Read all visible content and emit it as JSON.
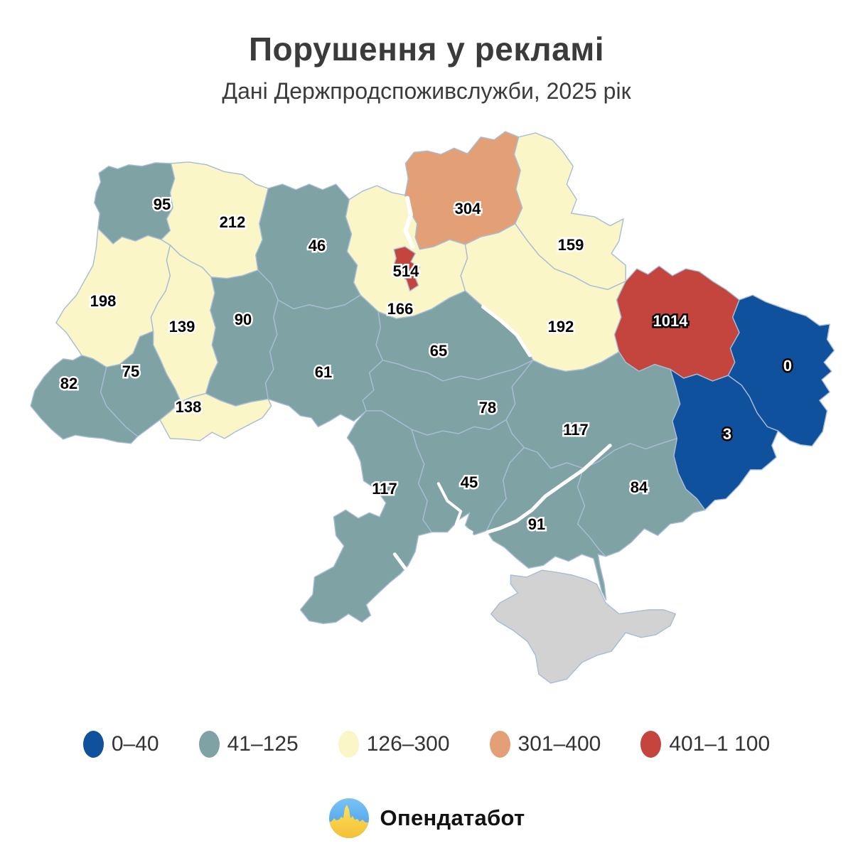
{
  "title": "Порушення у рекламі",
  "subtitle": "Дані Держпродспоживслужби, 2025 рік",
  "footer": {
    "brand": "Опендатабот"
  },
  "colors": {
    "no_data": "#d2d2d2",
    "border": "#a8bcd6",
    "logo_blue": "#55aaee",
    "logo_yellow": "#ffd84e"
  },
  "chart_data": {
    "type": "choropleth",
    "title": "Порушення у рекламі",
    "subtitle": "Дані Держпродспоживслужби, 2025 рік",
    "legend_position": "bottom",
    "legend_bins": [
      {
        "range": "0–40",
        "color": "#10519d"
      },
      {
        "range": "41–125",
        "color": "#7fa2a4"
      },
      {
        "range": "126–300",
        "color": "#faf6c8"
      },
      {
        "range": "301–400",
        "color": "#e3a077"
      },
      {
        "range": "401–1 100",
        "color": "#c3453d"
      }
    ],
    "regions": [
      {
        "id": "volyn",
        "value": 95,
        "bin": "41–125"
      },
      {
        "id": "rivne",
        "value": 212,
        "bin": "126–300"
      },
      {
        "id": "zhytomyr",
        "value": 46,
        "bin": "41–125"
      },
      {
        "id": "chernihiv",
        "value": 304,
        "bin": "301–400"
      },
      {
        "id": "sumy",
        "value": 159,
        "bin": "126–300"
      },
      {
        "id": "kyiv-city",
        "value": 514,
        "bin": "401–1 100"
      },
      {
        "id": "kyiv-oblast",
        "value": 166,
        "bin": "126–300"
      },
      {
        "id": "lviv",
        "value": 198,
        "bin": "126–300"
      },
      {
        "id": "ternopil",
        "value": 139,
        "bin": "126–300"
      },
      {
        "id": "khmelnytskyi",
        "value": 90,
        "bin": "41–125"
      },
      {
        "id": "poltava",
        "value": 192,
        "bin": "126–300"
      },
      {
        "id": "kharkiv",
        "value": 1014,
        "bin": "401–1 100"
      },
      {
        "id": "luhansk",
        "value": 0,
        "bin": "0–40"
      },
      {
        "id": "zakarpattia",
        "value": 82,
        "bin": "41–125"
      },
      {
        "id": "ivano-frankivsk",
        "value": 75,
        "bin": "41–125"
      },
      {
        "id": "chernivtsi",
        "value": 138,
        "bin": "126–300"
      },
      {
        "id": "vinnytsia",
        "value": 61,
        "bin": "41–125"
      },
      {
        "id": "cherkasy",
        "value": 65,
        "bin": "41–125"
      },
      {
        "id": "kirovohrad",
        "value": 78,
        "bin": "41–125"
      },
      {
        "id": "dnipro",
        "value": 117,
        "bin": "41–125"
      },
      {
        "id": "donetsk",
        "value": 3,
        "bin": "0–40"
      },
      {
        "id": "odesa",
        "value": 117,
        "bin": "41–125"
      },
      {
        "id": "mykolaiv",
        "value": 45,
        "bin": "41–125"
      },
      {
        "id": "zaporizhzhia",
        "value": 84,
        "bin": "41–125"
      },
      {
        "id": "kherson",
        "value": 91,
        "bin": "41–125"
      }
    ],
    "no_data_regions": [
      {
        "id": "crimea"
      }
    ]
  }
}
